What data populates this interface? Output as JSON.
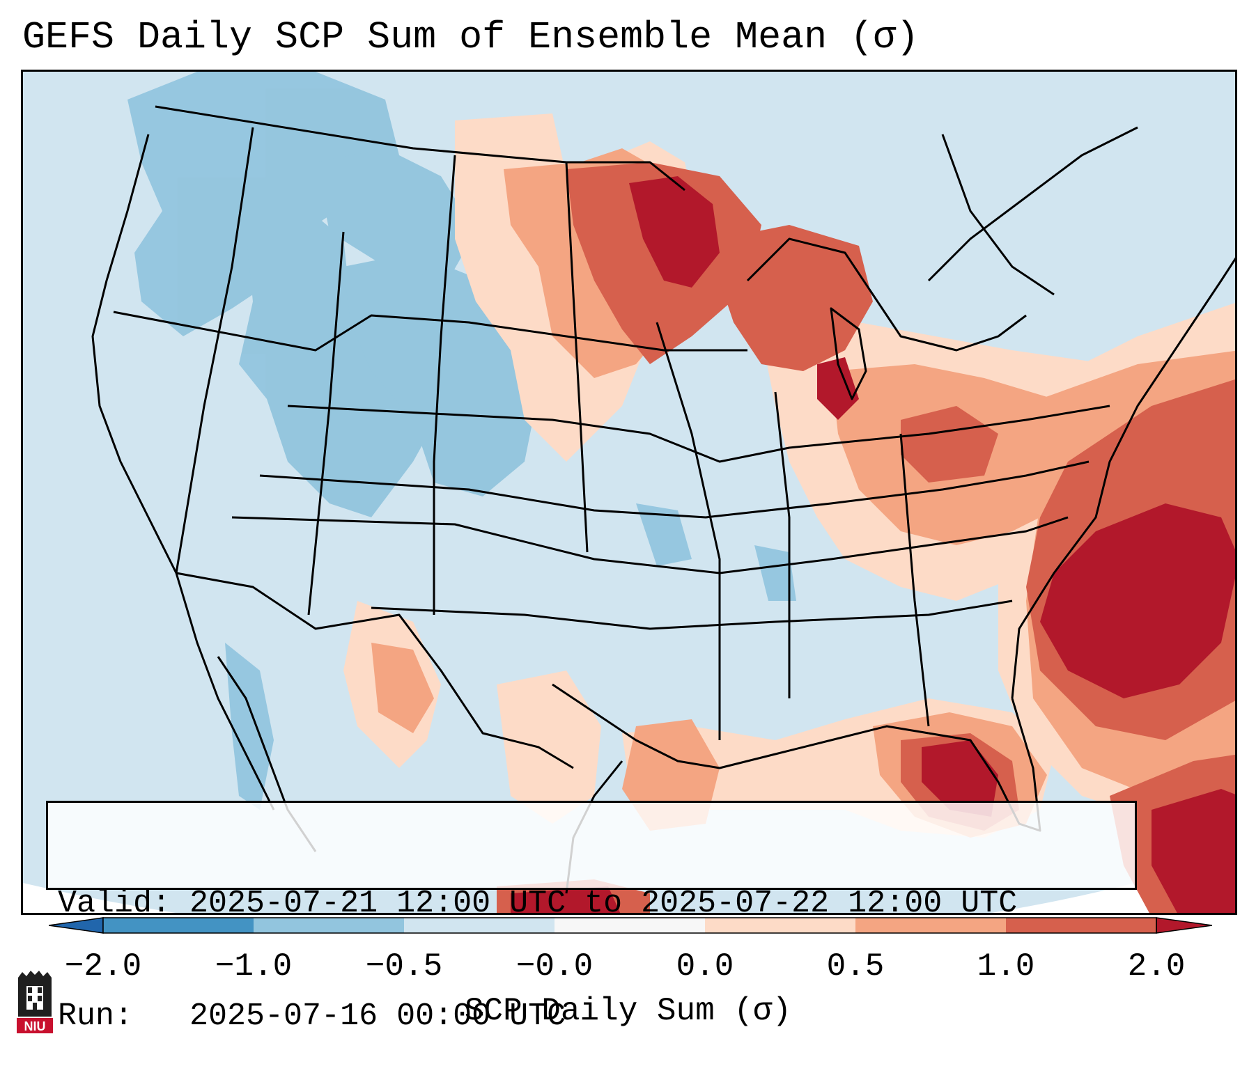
{
  "title": "GEFS Daily SCP Sum of Ensemble Mean (σ)",
  "info": {
    "valid_line": "Valid: 2025-07-21 12:00 UTC to 2025-07-22 12:00 UTC",
    "run_line": "Run:   2025-07-16 00:00 UTC"
  },
  "colorbar": {
    "label": "SCP Daily Sum (σ)",
    "ticks": [
      "−2.0",
      "−1.0",
      "−0.5",
      "−0.0",
      "0.0",
      "0.5",
      "1.0",
      "2.0"
    ],
    "colors": [
      "#2166ac",
      "#4393c3",
      "#92c5de",
      "#d1e5f0",
      "#f7f7f7",
      "#fddbc7",
      "#f4a582",
      "#d6604d",
      "#b2182b"
    ]
  },
  "logo": {
    "text": "NIU",
    "colors": {
      "tower": "#1f1f1f",
      "banner": "#c8102e"
    }
  },
  "map": {
    "projection": "Lambert conformal, CONUS",
    "background_color": "#d1e5f0",
    "regions": [
      {
        "name": "pacific-northwest-low",
        "level": "-1.0 to -0.5"
      },
      {
        "name": "great-basin-low",
        "level": "-1.0 to -0.5"
      },
      {
        "name": "wyoming-colorado-low",
        "level": "-1.0 to -0.5"
      },
      {
        "name": "northern-plains-high",
        "level": "0.5 to 2.0"
      },
      {
        "name": "minnesota-core-high",
        "level": "> 2.0"
      },
      {
        "name": "great-lakes-high",
        "level": "0.5 to 1.0"
      },
      {
        "name": "ohio-valley-high",
        "level": "0.5 to 1.0"
      },
      {
        "name": "atlantic-offshore-high",
        "level": "> 2.0"
      },
      {
        "name": "florida-gulf-high",
        "level": "1.0 to 2.0"
      },
      {
        "name": "south-texas-high",
        "level": "0.5 to 1.0"
      },
      {
        "name": "caribbean-high",
        "level": "> 2.0"
      }
    ]
  }
}
